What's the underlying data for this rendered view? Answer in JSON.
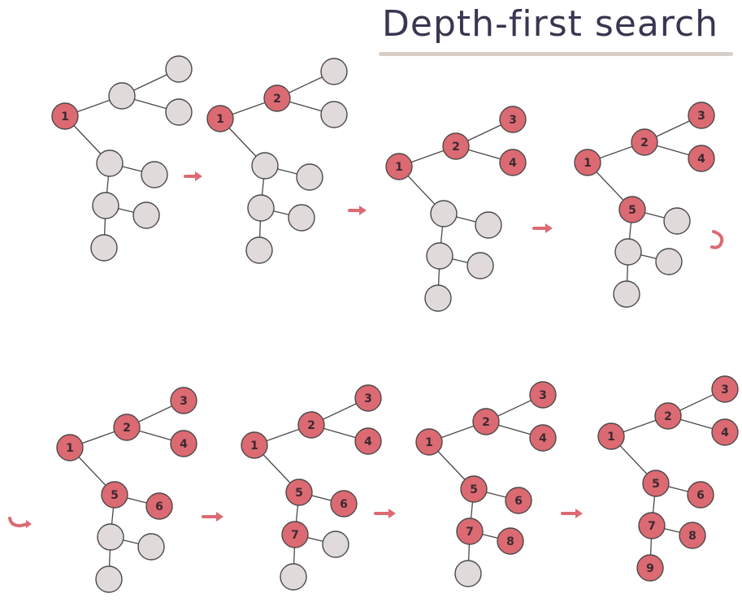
{
  "title": "Depth-first search",
  "colors": {
    "visited": "#dc6a73",
    "unvisited": "#e0dadb",
    "edge": "#4a4848",
    "arrow": "#dc6a73"
  },
  "tree": {
    "node_count": 9,
    "edges": [
      [
        1,
        2
      ],
      [
        2,
        3
      ],
      [
        2,
        4
      ],
      [
        1,
        5
      ],
      [
        5,
        6
      ],
      [
        5,
        7
      ],
      [
        7,
        8
      ],
      [
        7,
        9
      ]
    ]
  },
  "steps": [
    {
      "visited": [
        1
      ],
      "labels": [
        "1",
        "",
        "",
        "",
        "",
        "",
        "",
        "",
        ""
      ]
    },
    {
      "visited": [
        1,
        2
      ],
      "labels": [
        "1",
        "2",
        "",
        "",
        "",
        "",
        "",
        "",
        ""
      ]
    },
    {
      "visited": [
        1,
        2,
        3,
        4
      ],
      "labels": [
        "1",
        "2",
        "3",
        "4",
        "",
        "",
        "",
        "",
        ""
      ]
    },
    {
      "visited": [
        1,
        2,
        3,
        4,
        5
      ],
      "labels": [
        "1",
        "2",
        "3",
        "4",
        "5",
        "",
        "",
        "",
        ""
      ]
    },
    {
      "visited": [
        1,
        2,
        3,
        4,
        5,
        6
      ],
      "labels": [
        "1",
        "2",
        "3",
        "4",
        "5",
        "6",
        "",
        "",
        ""
      ]
    },
    {
      "visited": [
        1,
        2,
        3,
        4,
        5,
        6,
        7
      ],
      "labels": [
        "1",
        "2",
        "3",
        "4",
        "5",
        "6",
        "7",
        "",
        ""
      ]
    },
    {
      "visited": [
        1,
        2,
        3,
        4,
        5,
        6,
        7,
        8
      ],
      "labels": [
        "1",
        "2",
        "3",
        "4",
        "5",
        "6",
        "7",
        "8",
        ""
      ]
    },
    {
      "visited": [
        1,
        2,
        3,
        4,
        5,
        6,
        7,
        8,
        9
      ],
      "labels": [
        "1",
        "2",
        "3",
        "4",
        "5",
        "6",
        "7",
        "8",
        "9"
      ]
    }
  ]
}
